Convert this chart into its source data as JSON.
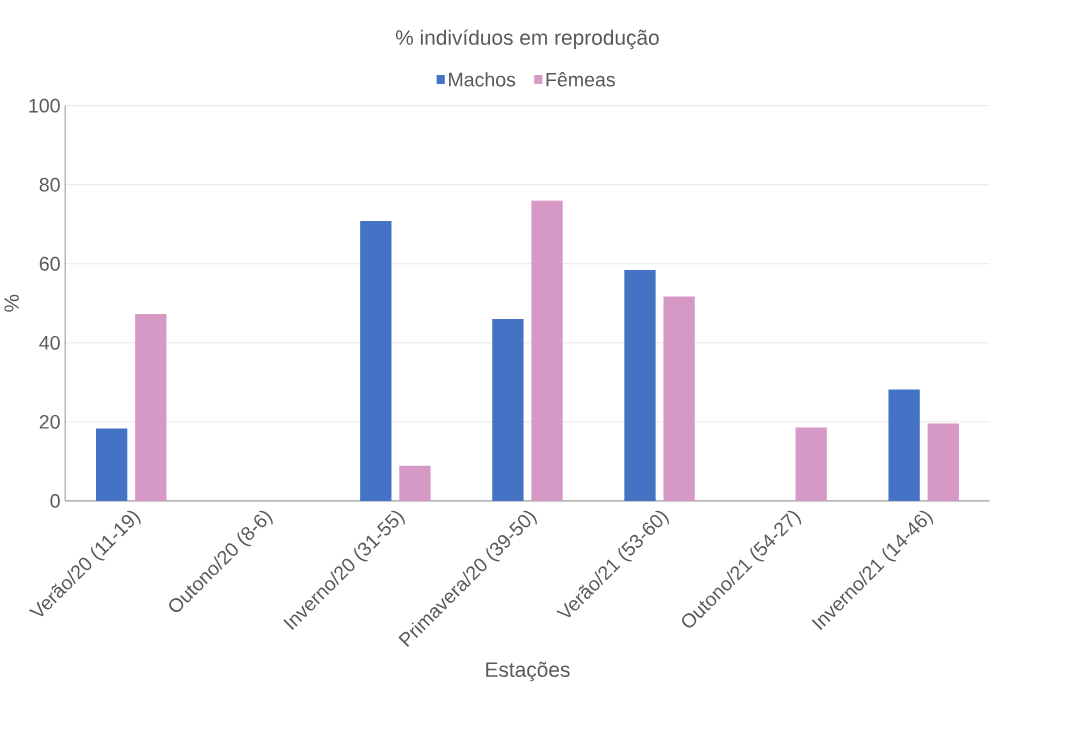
{
  "chart_data": {
    "type": "bar",
    "title": "% indivíduos em reprodução",
    "xlabel": "Estações",
    "ylabel": "%",
    "categories": [
      "Verão/20 (11-19)",
      "Outono/20 (8-6)",
      "Inverno/20 (31-55)",
      "Primavera/20 (39-50)",
      "Verão/21 (53-60)",
      "Outono/21 (54-27)",
      "Inverno/21 (14-46)"
    ],
    "series": [
      {
        "name": "Machos",
        "color": "#4472c4",
        "values": [
          18.3,
          0,
          70.8,
          46,
          58.4,
          0,
          28.2
        ]
      },
      {
        "name": "Fêmeas",
        "color": "#d699c5",
        "values": [
          47.3,
          0,
          8.9,
          76,
          51.7,
          18.6,
          19.6
        ]
      }
    ],
    "ylim": [
      0,
      100
    ],
    "yticks": [
      0,
      20,
      40,
      60,
      80,
      100
    ],
    "grid": "y",
    "legend": "top"
  }
}
